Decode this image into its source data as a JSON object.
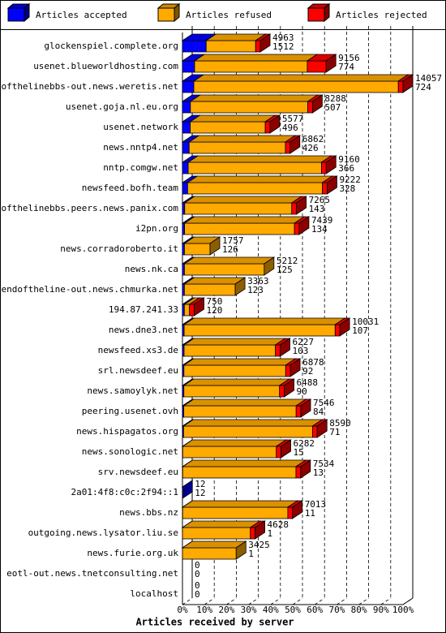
{
  "chart_data": {
    "type": "bar3d-stacked-horizontal",
    "x_axis_label": "Articles received by server",
    "categories": [
      "glockenspiel.complete.org",
      "usenet.blueworldhosting.com",
      "endofthelinebbs-out.news.weretis.net",
      "usenet.goja.nl.eu.org",
      "usenet.network",
      "news.nntp4.net",
      "nntp.comgw.net",
      "newsfeed.bofh.team",
      "endofthelinebbs.peers.news.panix.com",
      "i2pn.org",
      "news.corradoroberto.it",
      "news.nk.ca",
      "endoftheline-out.news.chmurka.net",
      "194.87.241.33",
      "news.dne3.net",
      "newsfeed.xs3.de",
      "srl.newsdeef.eu",
      "news.samoylyk.net",
      "peering.usenet.ovh",
      "news.hispagatos.org",
      "news.sonologic.net",
      "srv.newsdeef.eu",
      "2a01:4f8:c0c:2f94::1",
      "news.bbs.nz",
      "outgoing.news.lysator.liu.se",
      "news.furie.org.uk",
      "eotl-out.news.tnetconsulting.net",
      "localhost"
    ],
    "totals": [
      4963,
      9156,
      14057,
      8288,
      5577,
      6862,
      9160,
      9222,
      7265,
      7439,
      1757,
      5212,
      3363,
      750,
      10031,
      6227,
      6878,
      6488,
      7546,
      8590,
      6282,
      7534,
      12,
      7013,
      4628,
      3425,
      0,
      0
    ],
    "series": [
      {
        "name": "Articles accepted",
        "color": "#0000ff",
        "values": [
          1512,
          774,
          724,
          507,
          496,
          426,
          366,
          328,
          143,
          134,
          126,
          125,
          123,
          120,
          107,
          103,
          92,
          90,
          84,
          71,
          15,
          13,
          12,
          11,
          1,
          1,
          0,
          0
        ]
      },
      {
        "name": "Articles refused",
        "color": "#ffaa00",
        "values": [
          3151,
          7182,
          13033,
          7481,
          4781,
          6136,
          8494,
          8594,
          6822,
          7005,
          1631,
          5087,
          3240,
          330,
          9624,
          5824,
          6486,
          6098,
          7162,
          8219,
          5967,
          7221,
          0,
          6702,
          4327,
          3424,
          0,
          0
        ]
      },
      {
        "name": "Articles rejected",
        "color": "#ff0000",
        "values": [
          300,
          1200,
          300,
          300,
          300,
          300,
          300,
          300,
          300,
          300,
          0,
          0,
          0,
          300,
          300,
          300,
          300,
          300,
          300,
          300,
          300,
          300,
          0,
          300,
          300,
          0,
          0,
          0
        ]
      }
    ],
    "xlim": [
      0,
      14057
    ],
    "xticks": [
      {
        "value": 0,
        "label": "0%"
      },
      {
        "value": 1405.7,
        "label": "10%"
      },
      {
        "value": 2811.4,
        "label": "20%"
      },
      {
        "value": 4217.1,
        "label": "30%"
      },
      {
        "value": 5622.8,
        "label": "40%"
      },
      {
        "value": 7028.5,
        "label": "50%"
      },
      {
        "value": 8434.2,
        "label": "60%"
      },
      {
        "value": 9839.9,
        "label": "70%"
      },
      {
        "value": 11245.6,
        "label": "80%"
      },
      {
        "value": 12651.3,
        "label": "90%"
      },
      {
        "value": 14057,
        "label": "100%"
      }
    ],
    "grid": true
  }
}
